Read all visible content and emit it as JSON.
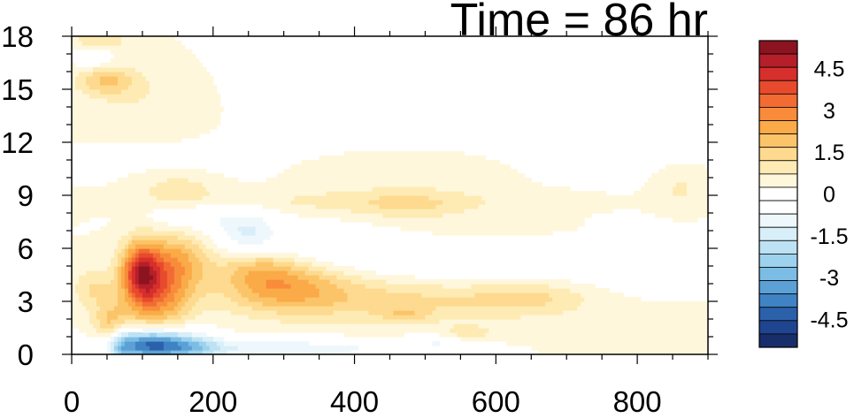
{
  "chart_data": {
    "type": "heatmap",
    "title": "Time = 86 hr",
    "xlabel": "",
    "ylabel": "",
    "xlim": [
      0,
      900
    ],
    "ylim": [
      0,
      18
    ],
    "x_ticks": [
      "0",
      "200",
      "400",
      "600",
      "800"
    ],
    "y_ticks": [
      "0",
      "3",
      "6",
      "9",
      "12",
      "15",
      "18"
    ],
    "colorbar": {
      "range": [
        -5.5,
        5.5
      ],
      "step": 0.5,
      "labels": [
        "4.5",
        "3",
        "1.5",
        "0",
        "-1.5",
        "-3",
        "-4.5"
      ],
      "colors": [
        "#8c1420",
        "#b51f2a",
        "#d62f2c",
        "#e84a2d",
        "#f26b33",
        "#f88c3b",
        "#fbaa48",
        "#fcc468",
        "#fdda8f",
        "#feebb4",
        "#fff7dc",
        "#ffffff",
        "#ffffff",
        "#eef8fc",
        "#d8eef8",
        "#bde2f3",
        "#9dd2ee",
        "#7cbde6",
        "#5ba1d6",
        "#3f83c4",
        "#2b61aa",
        "#1f4590",
        "#182e6b"
      ]
    },
    "features": [
      {
        "x": 110,
        "y": 0.6,
        "sx": 40,
        "sy": 0.6,
        "value": -4.5
      },
      {
        "x": 175,
        "y": 0.5,
        "sx": 30,
        "sy": 0.5,
        "value": -1.5
      },
      {
        "x": 300,
        "y": 0.3,
        "sx": 120,
        "sy": 0.4,
        "value": -1.5
      },
      {
        "x": 70,
        "y": 0.6,
        "sx": 12,
        "sy": 1.0,
        "value": -1.5
      },
      {
        "x": 60,
        "y": 1.6,
        "sx": 20,
        "sy": 1.0,
        "value": 2.0
      },
      {
        "x": 98,
        "y": 4.7,
        "sx": 20,
        "sy": 1.2,
        "value": 4.0
      },
      {
        "x": 125,
        "y": 3.2,
        "sx": 30,
        "sy": 1.3,
        "value": 2.2
      },
      {
        "x": 150,
        "y": 5.3,
        "sx": 30,
        "sy": 1.2,
        "value": 2.0
      },
      {
        "x": 260,
        "y": 5.2,
        "sx": 40,
        "sy": 0.9,
        "value": 1.4
      },
      {
        "x": 300,
        "y": 3.9,
        "sx": 60,
        "sy": 1.0,
        "value": 1.8
      },
      {
        "x": 450,
        "y": 3.2,
        "sx": 140,
        "sy": 1.0,
        "value": 1.2
      },
      {
        "x": 650,
        "y": 3.3,
        "sx": 60,
        "sy": 0.7,
        "value": 0.9
      },
      {
        "x": 30,
        "y": 3.8,
        "sx": 20,
        "sy": 0.8,
        "value": 1.0
      },
      {
        "x": 250,
        "y": 6.7,
        "sx": 30,
        "sy": 1.0,
        "value": -1.5
      },
      {
        "x": 350,
        "y": 6.2,
        "sx": 80,
        "sy": 0.8,
        "value": -0.9
      },
      {
        "x": 560,
        "y": 5.2,
        "sx": 120,
        "sy": 1.0,
        "value": -1.0
      },
      {
        "x": 800,
        "y": 5.2,
        "sx": 80,
        "sy": 1.2,
        "value": -0.5
      },
      {
        "x": 180,
        "y": 7.7,
        "sx": 50,
        "sy": 0.6,
        "value": -0.8
      },
      {
        "x": 400,
        "y": 8.7,
        "sx": 180,
        "sy": 0.5,
        "value": 0.6
      },
      {
        "x": 480,
        "y": 8.4,
        "sx": 60,
        "sy": 0.6,
        "value": 0.7
      },
      {
        "x": 150,
        "y": 9.5,
        "sx": 40,
        "sy": 0.7,
        "value": 0.8
      },
      {
        "x": 860,
        "y": 9.4,
        "sx": 25,
        "sy": 0.8,
        "value": 0.6
      },
      {
        "x": 50,
        "y": 15.5,
        "sx": 30,
        "sy": 0.6,
        "value": 1.5
      },
      {
        "x": 30,
        "y": 16.8,
        "sx": 15,
        "sy": 0.4,
        "value": -1.2
      },
      {
        "x": 40,
        "y": 17.8,
        "sx": 25,
        "sy": 0.4,
        "value": 1.0
      },
      {
        "x": 120,
        "y": 14.0,
        "sx": 60,
        "sy": 1.5,
        "value": 0.5
      },
      {
        "x": 350,
        "y": 14.5,
        "sx": 120,
        "sy": 2.0,
        "value": -0.3
      },
      {
        "x": 470,
        "y": 2.3,
        "sx": 25,
        "sy": 0.3,
        "value": 0.8
      },
      {
        "x": 560,
        "y": 1.2,
        "sx": 25,
        "sy": 0.3,
        "value": 0.8
      },
      {
        "x": 520,
        "y": 0.7,
        "sx": 30,
        "sy": 0.3,
        "value": -0.9
      },
      {
        "x": 150,
        "y": 11.0,
        "sx": 80,
        "sy": 1.0,
        "value": -0.3
      },
      {
        "x": 480,
        "y": 10.3,
        "sx": 100,
        "sy": 0.8,
        "value": 0.35
      },
      {
        "x": 720,
        "y": 12.5,
        "sx": 120,
        "sy": 2.0,
        "value": -0.25
      },
      {
        "x": 560,
        "y": 6.8,
        "sx": 150,
        "sy": 0.6,
        "value": 0.3
      },
      {
        "x": 820,
        "y": 1.5,
        "sx": 80,
        "sy": 0.8,
        "value": 0.35
      },
      {
        "x": 830,
        "y": 15.5,
        "sx": 40,
        "sy": 2.5,
        "value": -0.3
      }
    ]
  }
}
